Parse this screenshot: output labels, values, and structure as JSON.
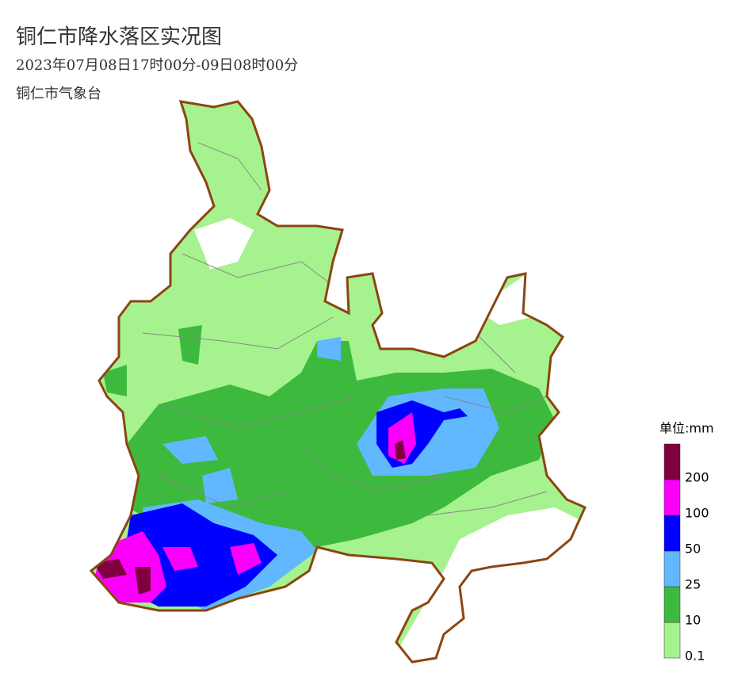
{
  "header": {
    "title": "铜仁市降水落区实况图",
    "subtitle": "2023年07月08日17时00分-09日08时00分",
    "source": "铜仁市气象台"
  },
  "legend": {
    "unit": "单位:mm",
    "ticks": [
      0.1,
      10,
      25,
      50,
      100,
      200
    ],
    "colors": [
      "#a6f28f",
      "#3dba3d",
      "#61b8ff",
      "#0000fe",
      "#fa00fa",
      "#800040"
    ]
  }
}
